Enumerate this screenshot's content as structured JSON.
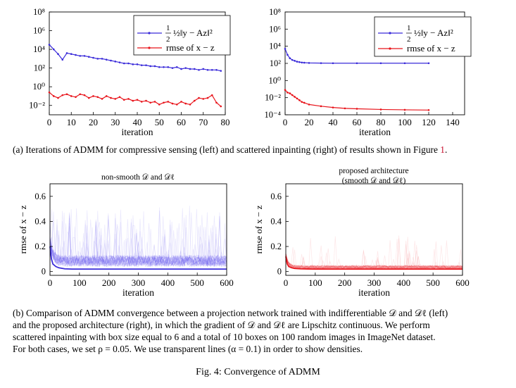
{
  "caption_a": {
    "before_ref": "(a) Iterations of ADMM for compressive sensing (left) and scattered inpainting (right) of results shown in Figure ",
    "ref": "1",
    "after_ref": "."
  },
  "caption_b": {
    "lines": [
      "(b) Comparison of ADMM convergence between a projection network trained with indifferentiable 𝒟 and 𝒟ℓ (left)",
      "and the proposed architecture (right), in which the gradient of 𝒟 and 𝒟ℓ are Lipschitz continuous. We perform",
      "scattered inpainting with box size equal to 6 and a total of 10 boxes on 100 random images in ImageNet dataset.",
      "For both cases, we set ρ = 0.05. We use transparent lines (α = 0.1) in order to show densities."
    ]
  },
  "figure_caption": "Fig. 4: Convergence of ADMM",
  "colors": {
    "blue": "#3a2bd9",
    "red": "#e8141b",
    "blue_light": "#6a5cf0",
    "red_light": "#f2585e"
  },
  "chart_data": [
    {
      "type": "line",
      "id": "a-left",
      "xlabel": "iteration",
      "ylabel": "",
      "xlim": [
        0,
        80
      ],
      "ylim_log10": [
        -3,
        8
      ],
      "yscale": "log",
      "xticks": [
        0,
        10,
        20,
        30,
        40,
        50,
        60,
        70,
        80
      ],
      "yticks": [
        {
          "exp": 8,
          "label": "10⁸"
        },
        {
          "exp": 6,
          "label": "10⁶"
        },
        {
          "exp": 4,
          "label": "10⁴"
        },
        {
          "exp": 2,
          "label": "10²"
        },
        {
          "exp": 0,
          "label": "10⁰"
        },
        {
          "exp": -2,
          "label": "10⁻²"
        }
      ],
      "legend": "top-right",
      "series": [
        {
          "name": "½‖y − Az‖²",
          "color": "#3a2bd9",
          "marker": "dot",
          "x": [
            0,
            2,
            4,
            6,
            8,
            10,
            12,
            14,
            16,
            18,
            20,
            22,
            24,
            26,
            28,
            30,
            32,
            34,
            36,
            38,
            40,
            42,
            44,
            46,
            48,
            50,
            52,
            54,
            56,
            58,
            60,
            62,
            64,
            66,
            68,
            70,
            72,
            74,
            76,
            78
          ],
          "log10_y": [
            4.5,
            4.0,
            3.5,
            2.9,
            3.6,
            3.5,
            3.4,
            3.3,
            3.3,
            3.2,
            3.1,
            3.0,
            3.0,
            2.9,
            2.8,
            2.7,
            2.6,
            2.5,
            2.5,
            2.4,
            2.4,
            2.3,
            2.3,
            2.2,
            2.2,
            2.1,
            2.1,
            2.1,
            2.0,
            2.1,
            1.9,
            2.0,
            1.9,
            1.9,
            1.8,
            1.9,
            1.8,
            1.8,
            1.8,
            1.7
          ]
        },
        {
          "name": "rmse of x − z",
          "color": "#e8141b",
          "marker": "dot",
          "x": [
            0,
            2,
            4,
            6,
            8,
            10,
            12,
            14,
            16,
            18,
            20,
            22,
            24,
            26,
            28,
            30,
            32,
            34,
            36,
            38,
            40,
            42,
            44,
            46,
            48,
            50,
            52,
            54,
            56,
            58,
            60,
            62,
            64,
            66,
            68,
            70,
            72,
            74,
            76,
            78
          ],
          "log10_y": [
            -0.6,
            -1.0,
            -1.2,
            -0.9,
            -0.8,
            -1.0,
            -1.1,
            -0.8,
            -0.9,
            -1.2,
            -1.0,
            -1.1,
            -1.3,
            -1.0,
            -1.2,
            -1.3,
            -1.1,
            -1.4,
            -1.3,
            -1.5,
            -1.4,
            -1.6,
            -1.5,
            -1.7,
            -1.6,
            -1.9,
            -1.7,
            -1.6,
            -1.8,
            -1.9,
            -1.6,
            -1.8,
            -1.9,
            -1.5,
            -1.2,
            -1.3,
            -1.2,
            -0.9,
            -1.7,
            -2.1
          ]
        }
      ]
    },
    {
      "type": "line",
      "id": "a-right",
      "xlabel": "iteration",
      "ylabel": "",
      "xlim": [
        0,
        150
      ],
      "ylim_log10": [
        -4,
        8
      ],
      "yscale": "log",
      "xticks": [
        0,
        20,
        40,
        60,
        80,
        100,
        120,
        140
      ],
      "yticks": [
        {
          "exp": 8,
          "label": "10⁸"
        },
        {
          "exp": 6,
          "label": "10⁶"
        },
        {
          "exp": 4,
          "label": "10⁴"
        },
        {
          "exp": 2,
          "label": "10²"
        },
        {
          "exp": 0,
          "label": "10⁰"
        },
        {
          "exp": -2,
          "label": "10⁻²"
        },
        {
          "exp": -4,
          "label": "10⁻⁴"
        }
      ],
      "legend": "top-right",
      "series": [
        {
          "name": "½‖y − Az‖²",
          "color": "#3a2bd9",
          "marker": "dot",
          "x": [
            0,
            2,
            4,
            6,
            8,
            10,
            12,
            14,
            16,
            20,
            30,
            40,
            60,
            80,
            100,
            120
          ],
          "log10_y": [
            3.7,
            3.0,
            2.6,
            2.4,
            2.3,
            2.2,
            2.15,
            2.1,
            2.08,
            2.05,
            2.03,
            2.02,
            2.02,
            2.02,
            2.02,
            2.02
          ]
        },
        {
          "name": "rmse of x − z",
          "color": "#e8141b",
          "marker": "dot",
          "x": [
            0,
            2,
            4,
            6,
            8,
            10,
            12,
            14,
            16,
            20,
            30,
            40,
            50,
            60,
            80,
            100,
            120
          ],
          "log10_y": [
            -1.1,
            -1.4,
            -1.5,
            -1.7,
            -1.9,
            -2.1,
            -2.3,
            -2.5,
            -2.6,
            -2.8,
            -3.0,
            -3.15,
            -3.25,
            -3.3,
            -3.38,
            -3.42,
            -3.45
          ]
        }
      ]
    },
    {
      "type": "line",
      "id": "b-left",
      "title": "non-smooth 𝒟 and 𝒟ℓ",
      "xlabel": "iteration",
      "ylabel": "rmse of x − z",
      "xlim": [
        0,
        600
      ],
      "ylim": [
        -0.03,
        0.7
      ],
      "xticks": [
        0,
        100,
        200,
        300,
        400,
        500,
        600
      ],
      "yticks": [
        0,
        0.2,
        0.4,
        0.6
      ],
      "series": [
        {
          "name": "",
          "color": "#3a2bd9",
          "x": [
            0,
            5,
            10,
            20,
            30,
            50,
            75,
            100,
            150,
            200,
            300,
            400,
            500,
            600
          ],
          "y": [
            0.2,
            0.1,
            0.06,
            0.04,
            0.03,
            0.022,
            0.02,
            0.02,
            0.02,
            0.02,
            0.02,
            0.02,
            0.02,
            0.02
          ]
        }
      ]
    },
    {
      "type": "line",
      "id": "b-right",
      "title": "proposed architecture\n(smooth 𝒟 and 𝒟ℓ)",
      "xlabel": "iteration",
      "ylabel": "rmse of x − z",
      "xlim": [
        0,
        600
      ],
      "ylim": [
        -0.03,
        0.7
      ],
      "xticks": [
        0,
        100,
        200,
        300,
        400,
        500,
        600
      ],
      "yticks": [
        0,
        0.2,
        0.4,
        0.6
      ],
      "series": [
        {
          "name": "",
          "color": "#e8141b",
          "x": [
            0,
            5,
            10,
            20,
            30,
            50,
            75,
            100,
            150,
            200,
            300,
            400,
            500,
            600
          ],
          "y": [
            0.12,
            0.06,
            0.04,
            0.03,
            0.025,
            0.022,
            0.021,
            0.02,
            0.02,
            0.02,
            0.02,
            0.02,
            0.02,
            0.02
          ]
        }
      ]
    }
  ]
}
